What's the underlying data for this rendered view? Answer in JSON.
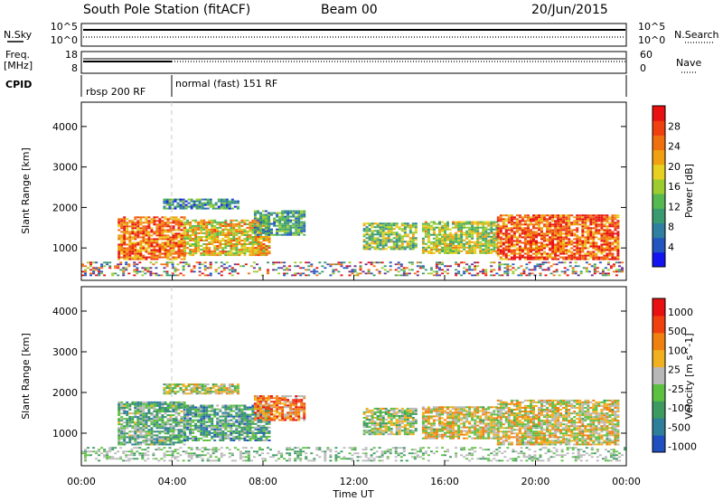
{
  "header": {
    "station": "South Pole Station (fitACF)",
    "beam": "Beam 00",
    "date": "20/Jun/2015"
  },
  "summary": {
    "nsky_label": "N.Sky",
    "nsearch_label": "N.Search",
    "freq_label_1": "Freq.",
    "freq_label_2": "[MHz]",
    "nave_label": "Nave",
    "cpid_label": "CPID",
    "nsky_ticks": [
      "10^5",
      "10^0"
    ],
    "nsearch_ticks": [
      "10^5",
      "10^0"
    ],
    "freq_ticks": [
      "18",
      "8"
    ],
    "nave_ticks": [
      "60",
      "0"
    ],
    "cpid_segments": [
      {
        "label": "rbsp 200 RF",
        "start_hour": 0
      },
      {
        "label": "normal (fast) 151 RF",
        "start_hour": 4
      }
    ]
  },
  "chart_data": [
    {
      "type": "heatmap",
      "name": "power",
      "xlabel": "",
      "ylabel": "Slant Range [km]",
      "xlim": [
        0,
        24
      ],
      "ylim": [
        200,
        4600
      ],
      "yticks": [
        "1000",
        "2000",
        "3000",
        "4000"
      ],
      "colorbar": {
        "label": "Power [dB]",
        "ticks": [
          "4",
          "8",
          "12",
          "16",
          "20",
          "24",
          "28"
        ],
        "colors": [
          "#1414f0",
          "#2255c0",
          "#2e7fa0",
          "#3a9a70",
          "#55b850",
          "#9ccc30",
          "#e8d020",
          "#f0a010",
          "#f07010",
          "#f04010",
          "#e81010"
        ]
      },
      "echo_regions": [
        {
          "t0": 1.6,
          "t1": 4.5,
          "r0": 700,
          "r1": 1750,
          "level": 0.78
        },
        {
          "t0": 4.5,
          "t1": 8.3,
          "r0": 800,
          "r1": 1700,
          "level": 0.62
        },
        {
          "t0": 3.6,
          "t1": 6.9,
          "r0": 1950,
          "r1": 2200,
          "level": 0.25
        },
        {
          "t0": 7.6,
          "t1": 9.8,
          "r0": 1300,
          "r1": 1900,
          "level": 0.32
        },
        {
          "t0": 12.4,
          "t1": 14.7,
          "r0": 950,
          "r1": 1600,
          "level": 0.45
        },
        {
          "t0": 15.0,
          "t1": 18.3,
          "r0": 850,
          "r1": 1650,
          "level": 0.52
        },
        {
          "t0": 18.3,
          "t1": 23.7,
          "r0": 700,
          "r1": 1800,
          "level": 0.82
        },
        {
          "t0": 0.0,
          "t1": 24.0,
          "r0": 300,
          "r1": 620,
          "level": 0.5
        }
      ]
    },
    {
      "type": "heatmap",
      "name": "velocity",
      "xlabel": "Time UT",
      "ylabel": "Slant Range [km]",
      "xlim": [
        0,
        24
      ],
      "ylim": [
        200,
        4600
      ],
      "xticks": [
        "00:00",
        "04:00",
        "08:00",
        "12:00",
        "16:00",
        "20:00",
        "00:00"
      ],
      "yticks": [
        "1000",
        "2000",
        "3000",
        "4000"
      ],
      "colorbar": {
        "label": "Velocity [m s^-1]",
        "ticks": [
          "1000",
          "500",
          "100",
          "25",
          "-25",
          "-100",
          "-500",
          "-1000"
        ],
        "colors": [
          "#2050c0",
          "#2f7f9a",
          "#3d9a60",
          "#5cc040",
          "#b8b8b8",
          "#f0b020",
          "#f08010",
          "#f04010",
          "#e81010"
        ]
      },
      "echo_regions": [
        {
          "t0": 1.6,
          "t1": 4.5,
          "r0": 700,
          "r1": 1750,
          "level": 0.35
        },
        {
          "t0": 4.5,
          "t1": 8.3,
          "r0": 800,
          "r1": 1700,
          "level": 0.3
        },
        {
          "t0": 3.6,
          "t1": 6.9,
          "r0": 1950,
          "r1": 2200,
          "level": 0.5
        },
        {
          "t0": 7.6,
          "t1": 9.8,
          "r0": 1300,
          "r1": 1900,
          "level": 0.72
        },
        {
          "t0": 12.4,
          "t1": 14.7,
          "r0": 950,
          "r1": 1600,
          "level": 0.45
        },
        {
          "t0": 15.0,
          "t1": 18.3,
          "r0": 850,
          "r1": 1650,
          "level": 0.55
        },
        {
          "t0": 18.3,
          "t1": 23.7,
          "r0": 700,
          "r1": 1800,
          "level": 0.55
        },
        {
          "t0": 0.0,
          "t1": 24.0,
          "r0": 300,
          "r1": 620,
          "level": 0.5
        }
      ]
    }
  ]
}
